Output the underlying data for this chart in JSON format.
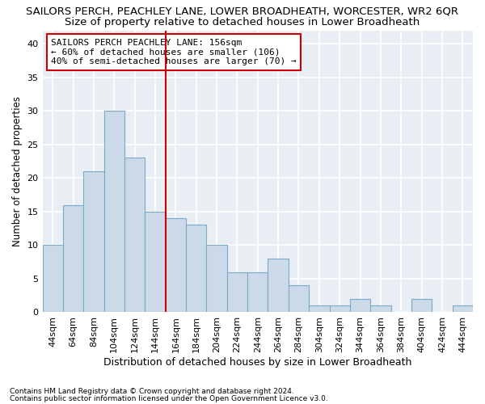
{
  "title": "SAILORS PERCH, PEACHLEY LANE, LOWER BROADHEATH, WORCESTER, WR2 6QR",
  "subtitle": "Size of property relative to detached houses in Lower Broadheath",
  "xlabel": "Distribution of detached houses by size in Lower Broadheath",
  "ylabel": "Number of detached properties",
  "categories": [
    "44sqm",
    "64sqm",
    "84sqm",
    "104sqm",
    "124sqm",
    "144sqm",
    "164sqm",
    "184sqm",
    "204sqm",
    "224sqm",
    "244sqm",
    "264sqm",
    "284sqm",
    "304sqm",
    "324sqm",
    "344sqm",
    "364sqm",
    "384sqm",
    "404sqm",
    "424sqm",
    "444sqm"
  ],
  "values": [
    10,
    16,
    21,
    30,
    23,
    15,
    14,
    13,
    10,
    6,
    6,
    8,
    4,
    1,
    1,
    2,
    1,
    0,
    2,
    0,
    1
  ],
  "bar_color": "#ccd9e8",
  "bar_edge_color": "#7aaac8",
  "vline_x": 6.0,
  "vline_color": "#cc0000",
  "annotation_line1": "SAILORS PERCH PEACHLEY LANE: 156sqm",
  "annotation_line2": "← 60% of detached houses are smaller (106)",
  "annotation_line3": "40% of semi-detached houses are larger (70) →",
  "annotation_box_color": "#ffffff",
  "annotation_box_edge_color": "#cc0000",
  "ylim": [
    0,
    42
  ],
  "yticks": [
    0,
    5,
    10,
    15,
    20,
    25,
    30,
    35,
    40
  ],
  "plot_bg_color": "#e8eef4",
  "fig_bg_color": "#ffffff",
  "grid_color": "#ffffff",
  "title_fontsize": 9.5,
  "subtitle_fontsize": 9.5,
  "ylabel_fontsize": 8.5,
  "xlabel_fontsize": 9,
  "tick_fontsize": 8,
  "footnote1": "Contains HM Land Registry data © Crown copyright and database right 2024.",
  "footnote2": "Contains public sector information licensed under the Open Government Licence v3.0."
}
